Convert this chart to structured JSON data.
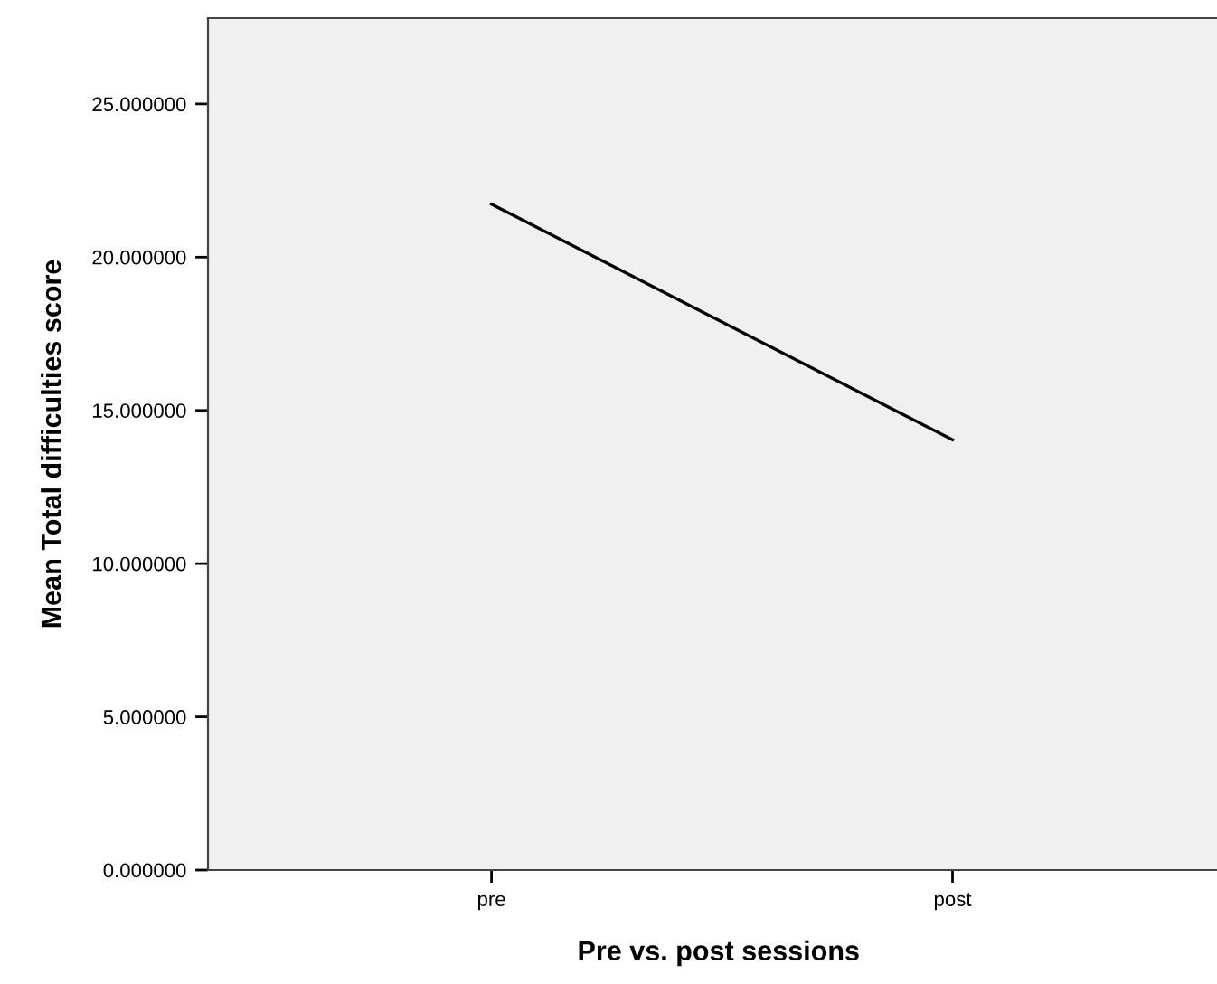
{
  "chart_data": {
    "type": "line",
    "xlabel": "Pre vs. post sessions",
    "ylabel": "Mean Total difficulties score",
    "categories": [
      "pre",
      "post"
    ],
    "series": [
      {
        "color": "#000000",
        "values": [
          21.73,
          14.04
        ]
      }
    ],
    "ylim": [
      0,
      27.8
    ],
    "yticks": [
      {
        "value": 0,
        "label": "0.000000"
      },
      {
        "value": 5,
        "label": "5.000000"
      },
      {
        "value": 10,
        "label": "10.000000"
      },
      {
        "value": 15,
        "label": "15.000000"
      },
      {
        "value": 20,
        "label": "20.000000"
      },
      {
        "value": 25,
        "label": "25.000000"
      }
    ],
    "grid": false,
    "marker": "none",
    "line_style": "solid"
  }
}
